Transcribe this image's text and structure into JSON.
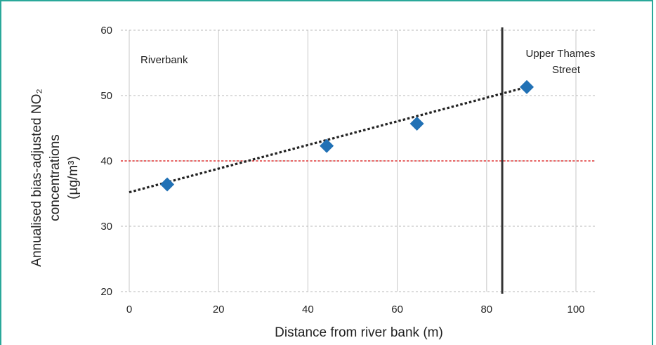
{
  "chart_data": {
    "type": "scatter",
    "title": "",
    "xlabel": "Distance from river bank (m)",
    "ylabel_lines": [
      "Annualised bias-adjusted NO₂",
      "concentrations",
      "(µg/m³)"
    ],
    "xlim": [
      0,
      100
    ],
    "ylim": [
      20,
      60
    ],
    "x_ticks": [
      0,
      20,
      40,
      60,
      80,
      100
    ],
    "y_ticks": [
      20,
      30,
      40,
      50,
      60
    ],
    "grid": "vertical and horizontal (dotted horizontal)",
    "series": [
      {
        "marker": "diamond",
        "color": "#2171b5",
        "x": [
          8.5,
          44.2,
          64.4,
          89.0
        ],
        "y": [
          36.4,
          42.3,
          45.7,
          51.3
        ]
      }
    ],
    "trendline": {
      "style": "dotted",
      "color": "#222222",
      "x": [
        0,
        89.0
      ],
      "y": [
        35.2,
        51.3
      ]
    },
    "reference_line": {
      "orientation": "horizontal",
      "y": 40,
      "style": "dotted",
      "color": "#e03030"
    },
    "vertical_marker": {
      "x": 83.5,
      "color": "#333333"
    },
    "annotations": {
      "riverbank": "Riverbank",
      "street_line1": "Upper Thames",
      "street_line2": "Street"
    }
  }
}
